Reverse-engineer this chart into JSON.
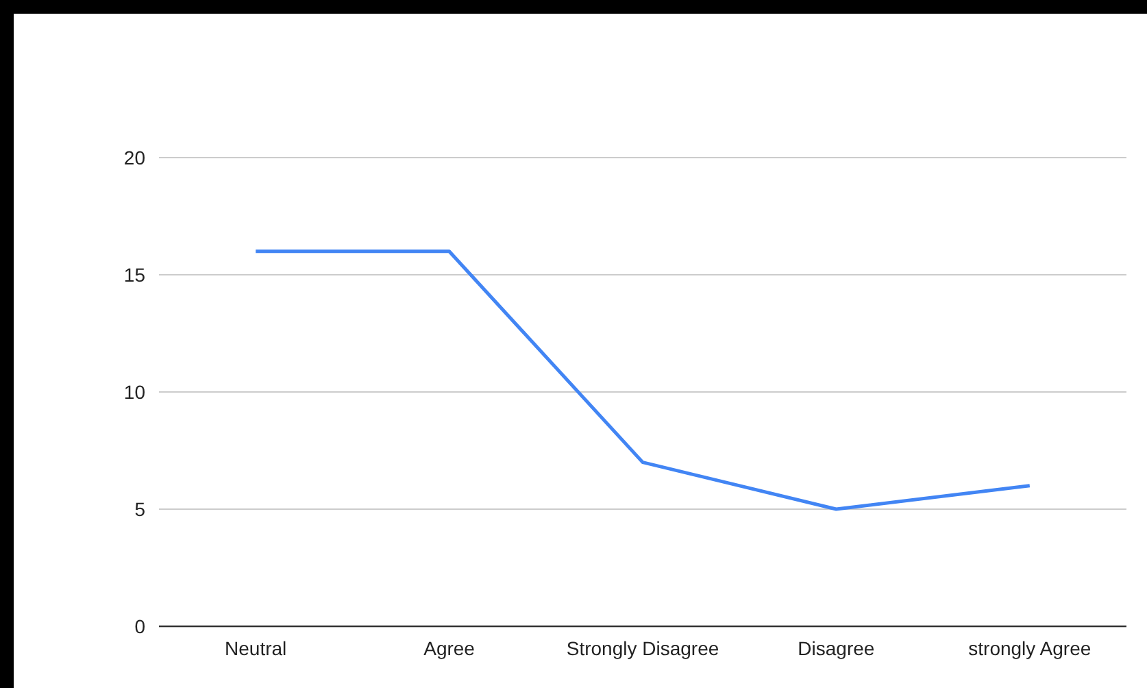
{
  "chart_data": {
    "type": "line",
    "categories": [
      "Neutral",
      "Agree",
      "Strongly Disagree",
      "Disagree",
      "strongly Agree"
    ],
    "series": [
      {
        "color": "#4285f4",
        "values": [
          16,
          16,
          7,
          5,
          6
        ]
      }
    ],
    "ylim": [
      0,
      20
    ],
    "yticks": [
      0,
      5,
      10,
      15,
      20
    ],
    "grid": "y",
    "marker": "none",
    "line_style": "solid"
  }
}
